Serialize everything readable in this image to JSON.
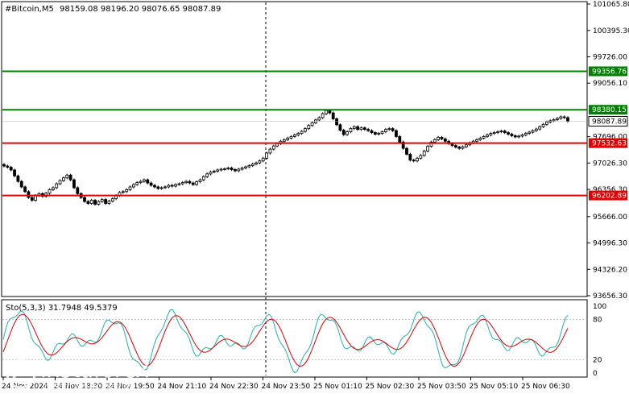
{
  "main_header": {
    "symbol": "#Bitcoin,M5",
    "ohlc": "98159.08 98196.20 98076.65 98087.89"
  },
  "price_axis": {
    "ticks": [
      "101065.80",
      "100395.30",
      "99726.00",
      "99056.10",
      "97696.00",
      "97026.30",
      "96356.30",
      "95666.00",
      "94996.30",
      "94326.20",
      "93656.30"
    ],
    "ymin": 93656.3,
    "ymax": 101065.8
  },
  "levels": [
    {
      "value": 99356.76,
      "label": "99356.76",
      "color": "#008000"
    },
    {
      "value": 98380.15,
      "label": "98380.15",
      "color": "#008000"
    },
    {
      "value": 97532.63,
      "label": "97532.63",
      "color": "#e00000"
    },
    {
      "value": 96202.89,
      "label": "96202.89",
      "color": "#e00000"
    }
  ],
  "current_price": {
    "value": 98087.89,
    "label": "98087.89"
  },
  "time_axis": {
    "labels": [
      "24 Nov 2024",
      "24 Nov 18:30",
      "24 Nov 19:50",
      "24 Nov 21:10",
      "24 Nov 22:30",
      "24 Nov 23:50",
      "25 Nov 01:10",
      "25 Nov 02:30",
      "25 Nov 03:50",
      "25 Nov 05:10",
      "25 Nov 06:30"
    ]
  },
  "stoch": {
    "header": "Sto(5,3,3) 31.7948 49.5379",
    "ticks": [
      "100",
      "80",
      "20",
      "0"
    ],
    "main_color": "#20b2aa",
    "signal_color": "#e00000"
  },
  "watermark": {
    "brand": "instaforex",
    "tagline": "Instant Forex Trading"
  },
  "chart_data": {
    "type": "candlestick",
    "title": "#Bitcoin,M5",
    "ylim": [
      93656.3,
      101065.8
    ],
    "close_prices": [
      96950,
      96920,
      96850,
      96700,
      96560,
      96420,
      96300,
      96150,
      96080,
      96200,
      96250,
      96180,
      96260,
      96350,
      96400,
      96500,
      96580,
      96650,
      96720,
      96600,
      96400,
      96250,
      96150,
      96050,
      96000,
      96080,
      95980,
      96050,
      96100,
      96000,
      96060,
      96120,
      96200,
      96280,
      96300,
      96350,
      96420,
      96480,
      96530,
      96560,
      96600,
      96520,
      96460,
      96420,
      96380,
      96400,
      96420,
      96460,
      96440,
      96480,
      96500,
      96530,
      96560,
      96520,
      96480,
      96550,
      96600,
      96680,
      96750,
      96800,
      96820,
      96850,
      96870,
      96880,
      96900,
      96860,
      96830,
      96870,
      96900,
      96930,
      96960,
      97000,
      97030,
      97080,
      97150,
      97280,
      97380,
      97460,
      97520,
      97580,
      97620,
      97660,
      97700,
      97740,
      97780,
      97830,
      97900,
      97980,
      98050,
      98120,
      98180,
      98280,
      98360,
      98300,
      98150,
      98000,
      97860,
      97750,
      97820,
      97900,
      97950,
      97880,
      97920,
      97880,
      97850,
      97800,
      97760,
      97780,
      97820,
      97880,
      97900,
      97850,
      97700,
      97560,
      97400,
      97250,
      97100,
      97080,
      97150,
      97220,
      97330,
      97450,
      97560,
      97620,
      97680,
      97640,
      97580,
      97520,
      97470,
      97430,
      97400,
      97440,
      97490,
      97540,
      97580,
      97620,
      97660,
      97700,
      97740,
      97780,
      97800,
      97820,
      97840,
      97800,
      97760,
      97720,
      97690,
      97710,
      97740,
      97780,
      97810,
      97850,
      97890,
      97950,
      98010,
      98070,
      98100,
      98130,
      98160,
      98200,
      98180,
      98087.89
    ],
    "levels": [
      99356.76,
      98380.15,
      97532.63,
      96202.89
    ]
  }
}
